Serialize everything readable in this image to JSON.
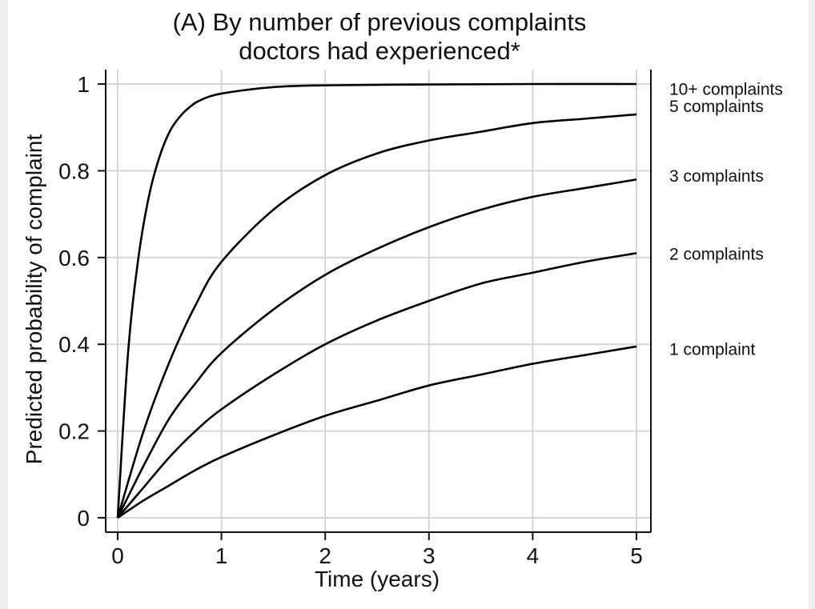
{
  "chart_data": {
    "type": "line",
    "title": [
      "(A) By number of previous complaints",
      "doctors had experienced*"
    ],
    "xlabel": "Time (years)",
    "ylabel": "Predicted probability of complaint",
    "xlim": [
      0,
      5
    ],
    "ylim": [
      0,
      1
    ],
    "xticks": [
      0,
      1,
      2,
      3,
      4,
      5
    ],
    "yticks": [
      0,
      0.2,
      0.4,
      0.6,
      0.8,
      1
    ],
    "ytick_labels": [
      "0",
      "0.2",
      "0.4",
      "0.6",
      "0.8",
      "1"
    ],
    "grid": true,
    "legend": "direct labels at right",
    "line_color": "#000000",
    "series": [
      {
        "name": "10+ complaints",
        "x": [
          0,
          0.1,
          0.2,
          0.3,
          0.4,
          0.5,
          0.6,
          0.7,
          0.8,
          1,
          1.5,
          2,
          3,
          4,
          5
        ],
        "values": [
          0,
          0.38,
          0.6,
          0.74,
          0.83,
          0.89,
          0.925,
          0.948,
          0.963,
          0.978,
          0.993,
          0.997,
          0.999,
          1.0,
          1.0
        ]
      },
      {
        "name": "5 complaints",
        "x": [
          0,
          0.25,
          0.5,
          0.75,
          1,
          1.5,
          2,
          2.5,
          3,
          3.5,
          4,
          4.5,
          5
        ],
        "values": [
          0,
          0.2,
          0.36,
          0.49,
          0.59,
          0.71,
          0.79,
          0.84,
          0.87,
          0.89,
          0.91,
          0.92,
          0.93
        ]
      },
      {
        "name": "3 complaints",
        "x": [
          0,
          0.25,
          0.5,
          0.75,
          1,
          1.5,
          2,
          2.5,
          3,
          3.5,
          4,
          4.5,
          5
        ],
        "values": [
          0,
          0.12,
          0.23,
          0.31,
          0.38,
          0.48,
          0.56,
          0.62,
          0.67,
          0.71,
          0.74,
          0.76,
          0.78
        ]
      },
      {
        "name": "2 complaints",
        "x": [
          0,
          0.25,
          0.5,
          0.75,
          1,
          1.5,
          2,
          2.5,
          3,
          3.5,
          4,
          4.5,
          5
        ],
        "values": [
          0,
          0.07,
          0.14,
          0.2,
          0.25,
          0.33,
          0.4,
          0.455,
          0.5,
          0.54,
          0.565,
          0.59,
          0.61
        ]
      },
      {
        "name": "1 complaint",
        "x": [
          0,
          0.25,
          0.5,
          0.75,
          1,
          1.5,
          2,
          2.5,
          3,
          3.5,
          4,
          4.5,
          5
        ],
        "values": [
          0,
          0.04,
          0.075,
          0.11,
          0.14,
          0.19,
          0.235,
          0.27,
          0.305,
          0.33,
          0.355,
          0.375,
          0.395
        ]
      }
    ],
    "series_labels": [
      {
        "text": "10+ complaints",
        "y": 0.99
      },
      {
        "text": "5 complaints",
        "y": 0.95
      },
      {
        "text": "3 complaints",
        "y": 0.79
      },
      {
        "text": "2 complaints",
        "y": 0.61
      },
      {
        "text": "1 complaint",
        "y": 0.39
      }
    ]
  }
}
